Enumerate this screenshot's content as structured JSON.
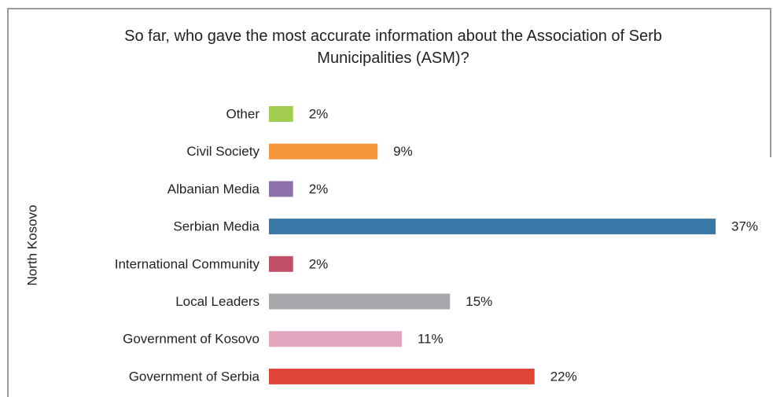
{
  "chart_data": {
    "type": "bar",
    "orientation": "horizontal",
    "title": "So far, who gave the most accurate information about the Association of Serb Municipalities (ASM)?",
    "ylabel": "North Kosovo",
    "categories": [
      "Other",
      "Civil Society",
      "Albanian Media",
      "Serbian Media",
      "International Community",
      "Local Leaders",
      "Government of Kosovo",
      "Government of Serbia"
    ],
    "values": [
      2,
      9,
      2,
      37,
      2,
      15,
      11,
      22
    ],
    "value_labels": [
      "2%",
      "9%",
      "2%",
      "37%",
      "2%",
      "15%",
      "11%",
      "22%"
    ],
    "colors": [
      "#a3cd4e",
      "#f7963a",
      "#8e72ab",
      "#3a78a8",
      "#c05168",
      "#a7a8ab",
      "#e3a6bf",
      "#df4536"
    ]
  }
}
